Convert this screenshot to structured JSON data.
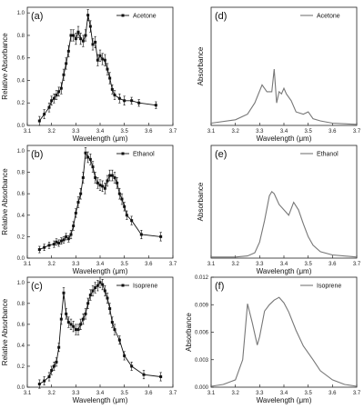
{
  "chart_data": [
    {
      "type": "scatter",
      "panel": "(a)",
      "xlabel": "Wavelength (μm)",
      "ylabel": "Relative Absorbance",
      "xlim": [
        3.1,
        3.7
      ],
      "ylim": [
        0,
        1.05
      ],
      "xticks": [
        "3.1",
        "3.2",
        "3.3",
        "3.4",
        "3.5",
        "3.6",
        "3.7"
      ],
      "yticks": [
        "0.0",
        "0.2",
        "0.4",
        "0.6",
        "0.8",
        "1.0"
      ],
      "legend_position": "top-right",
      "series": [
        {
          "name": "Acetone",
          "color": "#111111",
          "style": "line-with-square-markers-and-errorbars",
          "x": [
            3.15,
            3.17,
            3.19,
            3.2,
            3.21,
            3.22,
            3.23,
            3.24,
            3.25,
            3.26,
            3.27,
            3.28,
            3.29,
            3.3,
            3.31,
            3.32,
            3.33,
            3.34,
            3.35,
            3.36,
            3.37,
            3.38,
            3.39,
            3.4,
            3.41,
            3.42,
            3.43,
            3.44,
            3.45,
            3.46,
            3.48,
            3.5,
            3.53,
            3.56,
            3.63
          ],
          "y": [
            0.04,
            0.1,
            0.16,
            0.22,
            0.24,
            0.27,
            0.3,
            0.33,
            0.45,
            0.55,
            0.66,
            0.8,
            0.8,
            0.77,
            0.83,
            0.77,
            0.75,
            0.8,
            0.98,
            0.88,
            0.72,
            0.74,
            0.58,
            0.62,
            0.59,
            0.58,
            0.5,
            0.42,
            0.32,
            0.27,
            0.24,
            0.22,
            0.22,
            0.2,
            0.18
          ],
          "err": [
            0.04,
            0.04,
            0.04,
            0.04,
            0.04,
            0.04,
            0.04,
            0.05,
            0.05,
            0.05,
            0.05,
            0.05,
            0.05,
            0.05,
            0.05,
            0.05,
            0.05,
            0.05,
            0.05,
            0.05,
            0.05,
            0.05,
            0.05,
            0.05,
            0.05,
            0.05,
            0.05,
            0.05,
            0.04,
            0.04,
            0.04,
            0.04,
            0.03,
            0.03,
            0.03
          ]
        }
      ]
    },
    {
      "type": "line",
      "panel": "(d)",
      "xlabel": "Wavelength (μm)",
      "ylabel": "Absorbance",
      "xlim": [
        3.1,
        3.7
      ],
      "ylim": [
        0,
        1.05
      ],
      "xticks": [
        "3.1",
        "3.2",
        "3.3",
        "3.4",
        "3.5",
        "3.6",
        "3.7"
      ],
      "yticks": [],
      "legend_position": "top-right",
      "series": [
        {
          "name": "Acetone",
          "color": "#777777",
          "x": [
            3.1,
            3.2,
            3.25,
            3.28,
            3.31,
            3.33,
            3.35,
            3.36,
            3.37,
            3.38,
            3.39,
            3.4,
            3.41,
            3.43,
            3.45,
            3.48,
            3.5,
            3.52,
            3.55,
            3.6,
            3.7
          ],
          "y": [
            0.02,
            0.05,
            0.1,
            0.2,
            0.36,
            0.3,
            0.3,
            0.5,
            0.2,
            0.3,
            0.28,
            0.33,
            0.28,
            0.22,
            0.12,
            0.1,
            0.12,
            0.06,
            0.04,
            0.02,
            0.01
          ]
        }
      ]
    },
    {
      "type": "scatter",
      "panel": "(b)",
      "xlabel": "Wavelength (μm)",
      "ylabel": "Relative Absorbance",
      "xlim": [
        3.1,
        3.7
      ],
      "ylim": [
        0,
        1.05
      ],
      "xticks": [
        "3.1",
        "3.2",
        "3.3",
        "3.4",
        "3.5",
        "3.6",
        "3.7"
      ],
      "yticks": [
        "0.0",
        "0.2",
        "0.4",
        "0.6",
        "0.8",
        "1.0"
      ],
      "legend_position": "top-right",
      "series": [
        {
          "name": "Ethanol",
          "color": "#111111",
          "style": "line-with-square-markers-and-errorbars",
          "x": [
            3.15,
            3.17,
            3.19,
            3.21,
            3.22,
            3.23,
            3.24,
            3.25,
            3.26,
            3.27,
            3.28,
            3.29,
            3.3,
            3.31,
            3.32,
            3.33,
            3.34,
            3.35,
            3.36,
            3.37,
            3.38,
            3.39,
            3.4,
            3.41,
            3.42,
            3.43,
            3.44,
            3.45,
            3.46,
            3.47,
            3.48,
            3.49,
            3.5,
            3.51,
            3.53,
            3.57,
            3.65
          ],
          "y": [
            0.08,
            0.1,
            0.12,
            0.13,
            0.15,
            0.14,
            0.16,
            0.17,
            0.2,
            0.18,
            0.22,
            0.3,
            0.42,
            0.52,
            0.6,
            0.75,
            0.98,
            0.94,
            0.92,
            0.85,
            0.75,
            0.7,
            0.68,
            0.67,
            0.65,
            0.72,
            0.77,
            0.77,
            0.75,
            0.7,
            0.6,
            0.55,
            0.48,
            0.4,
            0.35,
            0.22,
            0.2
          ],
          "err": [
            0.03,
            0.03,
            0.03,
            0.03,
            0.03,
            0.03,
            0.03,
            0.03,
            0.03,
            0.03,
            0.04,
            0.04,
            0.04,
            0.05,
            0.05,
            0.05,
            0.05,
            0.05,
            0.05,
            0.05,
            0.05,
            0.05,
            0.05,
            0.05,
            0.05,
            0.05,
            0.05,
            0.05,
            0.05,
            0.05,
            0.05,
            0.05,
            0.04,
            0.04,
            0.04,
            0.04,
            0.04
          ]
        }
      ]
    },
    {
      "type": "line",
      "panel": "(e)",
      "xlabel": "Wavelength (μm)",
      "ylabel": "Absorbance",
      "xlim": [
        3.1,
        3.7
      ],
      "ylim": [
        0,
        1.05
      ],
      "xticks": [
        "3.1",
        "3.2",
        "3.3",
        "3.4",
        "3.5",
        "3.6",
        "3.7"
      ],
      "yticks": [],
      "legend_position": "top-right",
      "series": [
        {
          "name": "Ethanol",
          "color": "#777777",
          "x": [
            3.1,
            3.2,
            3.25,
            3.28,
            3.3,
            3.32,
            3.34,
            3.35,
            3.36,
            3.38,
            3.4,
            3.42,
            3.44,
            3.46,
            3.48,
            3.5,
            3.52,
            3.55,
            3.6,
            3.7
          ],
          "y": [
            0.01,
            0.01,
            0.02,
            0.05,
            0.15,
            0.35,
            0.58,
            0.62,
            0.6,
            0.5,
            0.45,
            0.4,
            0.52,
            0.45,
            0.32,
            0.2,
            0.12,
            0.06,
            0.03,
            0.01
          ]
        }
      ]
    },
    {
      "type": "scatter",
      "panel": "(c)",
      "xlabel": "Wavelength (μm)",
      "ylabel": "Relative Absorbance",
      "xlim": [
        3.1,
        3.7
      ],
      "ylim": [
        0,
        1.05
      ],
      "xticks": [
        "3.1",
        "3.2",
        "3.3",
        "3.4",
        "3.5",
        "3.6",
        "3.7"
      ],
      "yticks": [
        "0.0",
        "0.2",
        "0.4",
        "0.6",
        "0.8",
        "1.0"
      ],
      "legend_position": "top-right",
      "series": [
        {
          "name": "Isoprene",
          "color": "#111111",
          "style": "line-with-square-markers-and-errorbars",
          "x": [
            3.15,
            3.17,
            3.19,
            3.2,
            3.21,
            3.22,
            3.23,
            3.24,
            3.25,
            3.26,
            3.27,
            3.28,
            3.29,
            3.3,
            3.31,
            3.32,
            3.33,
            3.34,
            3.35,
            3.36,
            3.37,
            3.38,
            3.39,
            3.4,
            3.41,
            3.42,
            3.43,
            3.44,
            3.45,
            3.46,
            3.48,
            3.5,
            3.53,
            3.58,
            3.65
          ],
          "y": [
            0.03,
            0.06,
            0.1,
            0.16,
            0.2,
            0.24,
            0.38,
            0.65,
            0.9,
            0.7,
            0.62,
            0.6,
            0.58,
            0.55,
            0.55,
            0.6,
            0.65,
            0.7,
            0.8,
            0.88,
            0.92,
            0.95,
            0.97,
            1.0,
            0.98,
            0.92,
            0.85,
            0.75,
            0.62,
            0.55,
            0.45,
            0.3,
            0.2,
            0.12,
            0.1
          ],
          "err": [
            0.04,
            0.04,
            0.04,
            0.04,
            0.04,
            0.04,
            0.04,
            0.05,
            0.05,
            0.05,
            0.05,
            0.05,
            0.05,
            0.05,
            0.05,
            0.05,
            0.05,
            0.05,
            0.05,
            0.05,
            0.05,
            0.05,
            0.05,
            0.05,
            0.05,
            0.05,
            0.05,
            0.05,
            0.05,
            0.05,
            0.04,
            0.04,
            0.04,
            0.04,
            0.04
          ]
        }
      ]
    },
    {
      "type": "line",
      "panel": "(f)",
      "xlabel": "Wavelength (μm)",
      "ylabel": "Absorbance",
      "xlim": [
        3.1,
        3.7
      ],
      "ylim": [
        0,
        0.012
      ],
      "xticks": [
        "3.1",
        "3.2",
        "3.3",
        "3.4",
        "3.5",
        "3.6",
        "3.7"
      ],
      "yticks": [
        "0.000",
        "0.003",
        "0.006",
        "0.009",
        "0.012"
      ],
      "legend_position": "top-right",
      "series": [
        {
          "name": "Isoprene",
          "color": "#777777",
          "x": [
            3.1,
            3.15,
            3.2,
            3.23,
            3.25,
            3.27,
            3.29,
            3.3,
            3.32,
            3.34,
            3.36,
            3.38,
            3.4,
            3.42,
            3.45,
            3.48,
            3.52,
            3.55,
            3.6,
            3.65,
            3.7
          ],
          "y": [
            0.0001,
            0.0003,
            0.0008,
            0.003,
            0.0091,
            0.007,
            0.0046,
            0.0055,
            0.0083,
            0.009,
            0.0095,
            0.0098,
            0.0092,
            0.0082,
            0.0062,
            0.0045,
            0.003,
            0.0018,
            0.0008,
            0.0003,
            0.0001
          ]
        }
      ]
    }
  ]
}
